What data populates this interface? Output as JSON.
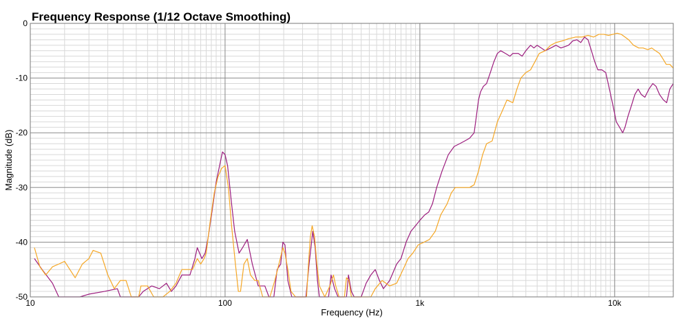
{
  "chart_data": {
    "type": "line",
    "title": "Frequency Response (1/12 Octave Smoothing)",
    "xlabel": "Frequency (Hz)",
    "ylabel": "Magnitude (dB)",
    "xscale": "log",
    "xlim": [
      10,
      20000
    ],
    "ylim": [
      -50,
      0
    ],
    "grid": true,
    "legend": "none",
    "x_ticks": [
      {
        "value": 10,
        "label": "10"
      },
      {
        "value": 100,
        "label": "100"
      },
      {
        "value": 1000,
        "label": "1k"
      },
      {
        "value": 10000,
        "label": "10k"
      }
    ],
    "y_ticks": [
      {
        "value": 0,
        "label": "0"
      },
      {
        "value": -10,
        "label": "-10"
      },
      {
        "value": -20,
        "label": "-20"
      },
      {
        "value": -30,
        "label": "-30"
      },
      {
        "value": -40,
        "label": "-40"
      },
      {
        "value": -50,
        "label": "-50"
      }
    ],
    "series": [
      {
        "color": "#9b1b7d",
        "points": [
          [
            10.5,
            -43
          ],
          [
            11.5,
            -45
          ],
          [
            13,
            -47.5
          ],
          [
            14,
            -50
          ],
          [
            18,
            -50
          ],
          [
            20,
            -49.5
          ],
          [
            24,
            -49
          ],
          [
            28,
            -48.5
          ],
          [
            29,
            -50
          ],
          [
            36,
            -50
          ],
          [
            38,
            -49
          ],
          [
            42,
            -48
          ],
          [
            46,
            -48.5
          ],
          [
            48,
            -48
          ],
          [
            50,
            -47.5
          ],
          [
            53,
            -49
          ],
          [
            56,
            -48
          ],
          [
            60,
            -46
          ],
          [
            63,
            -46
          ],
          [
            66,
            -46
          ],
          [
            70,
            -43
          ],
          [
            72,
            -41
          ],
          [
            76,
            -43
          ],
          [
            79,
            -42
          ],
          [
            82,
            -39
          ],
          [
            86,
            -34
          ],
          [
            90,
            -29
          ],
          [
            95,
            -25
          ],
          [
            97,
            -23.5
          ],
          [
            100,
            -24
          ],
          [
            103,
            -26
          ],
          [
            108,
            -33
          ],
          [
            112,
            -38
          ],
          [
            118,
            -42
          ],
          [
            123,
            -41
          ],
          [
            130,
            -39.5
          ],
          [
            138,
            -44
          ],
          [
            148,
            -48
          ],
          [
            160,
            -48
          ],
          [
            168,
            -50
          ],
          [
            178,
            -50
          ],
          [
            185,
            -45
          ],
          [
            193,
            -44
          ],
          [
            198,
            -40
          ],
          [
            203,
            -40.5
          ],
          [
            210,
            -47
          ],
          [
            220,
            -50
          ],
          [
            260,
            -50
          ],
          [
            270,
            -44
          ],
          [
            278,
            -40
          ],
          [
            282,
            -38
          ],
          [
            290,
            -41
          ],
          [
            298,
            -47
          ],
          [
            305,
            -50
          ],
          [
            340,
            -50
          ],
          [
            350,
            -46
          ],
          [
            365,
            -48.5
          ],
          [
            380,
            -50
          ],
          [
            420,
            -50
          ],
          [
            430,
            -46
          ],
          [
            445,
            -49
          ],
          [
            460,
            -50
          ],
          [
            500,
            -50
          ],
          [
            530,
            -47.5
          ],
          [
            560,
            -46
          ],
          [
            590,
            -45
          ],
          [
            620,
            -47
          ],
          [
            650,
            -48.5
          ],
          [
            700,
            -47
          ],
          [
            760,
            -44
          ],
          [
            800,
            -43
          ],
          [
            850,
            -40
          ],
          [
            900,
            -38
          ],
          [
            950,
            -37
          ],
          [
            1000,
            -36
          ],
          [
            1060,
            -35
          ],
          [
            1110,
            -34.5
          ],
          [
            1160,
            -33
          ],
          [
            1220,
            -30
          ],
          [
            1300,
            -27
          ],
          [
            1400,
            -24
          ],
          [
            1500,
            -22.5
          ],
          [
            1600,
            -22
          ],
          [
            1700,
            -21.5
          ],
          [
            1800,
            -21
          ],
          [
            1900,
            -20
          ],
          [
            1950,
            -17
          ],
          [
            2000,
            -14
          ],
          [
            2050,
            -12.5
          ],
          [
            2120,
            -11.5
          ],
          [
            2200,
            -11
          ],
          [
            2300,
            -9
          ],
          [
            2400,
            -7
          ],
          [
            2500,
            -5.5
          ],
          [
            2600,
            -5
          ],
          [
            2750,
            -5.5
          ],
          [
            2900,
            -6
          ],
          [
            3000,
            -5.5
          ],
          [
            3200,
            -5.5
          ],
          [
            3350,
            -6
          ],
          [
            3500,
            -5
          ],
          [
            3700,
            -4
          ],
          [
            3850,
            -4.5
          ],
          [
            4000,
            -4
          ],
          [
            4200,
            -4.5
          ],
          [
            4400,
            -5
          ],
          [
            4700,
            -4.5
          ],
          [
            5000,
            -4
          ],
          [
            5300,
            -4.5
          ],
          [
            5600,
            -4.2
          ],
          [
            5800,
            -4
          ],
          [
            6100,
            -3.2
          ],
          [
            6400,
            -3
          ],
          [
            6700,
            -3.5
          ],
          [
            7000,
            -2.5
          ],
          [
            7300,
            -3
          ],
          [
            7600,
            -5
          ],
          [
            7900,
            -7
          ],
          [
            8200,
            -8.5
          ],
          [
            8600,
            -8.5
          ],
          [
            9000,
            -9
          ],
          [
            9400,
            -12
          ],
          [
            9800,
            -15
          ],
          [
            10200,
            -18
          ],
          [
            10600,
            -19
          ],
          [
            11000,
            -20
          ],
          [
            11300,
            -19
          ],
          [
            11700,
            -17
          ],
          [
            12200,
            -15
          ],
          [
            12700,
            -13
          ],
          [
            13200,
            -12
          ],
          [
            13700,
            -13
          ],
          [
            14300,
            -13.5
          ],
          [
            15000,
            -12
          ],
          [
            15700,
            -11
          ],
          [
            16300,
            -11.5
          ],
          [
            17000,
            -13
          ],
          [
            17800,
            -14
          ],
          [
            18500,
            -14.5
          ],
          [
            19200,
            -12
          ],
          [
            20000,
            -11
          ]
        ]
      },
      {
        "color": "#f5a623",
        "points": [
          [
            10.5,
            -41
          ],
          [
            11.2,
            -44.5
          ],
          [
            12,
            -46
          ],
          [
            13,
            -44.5
          ],
          [
            14,
            -44
          ],
          [
            15,
            -43.5
          ],
          [
            17,
            -46.5
          ],
          [
            18.5,
            -44
          ],
          [
            20,
            -43
          ],
          [
            21,
            -41.5
          ],
          [
            23,
            -42
          ],
          [
            25,
            -46
          ],
          [
            27,
            -48.5
          ],
          [
            29,
            -47
          ],
          [
            31,
            -47
          ],
          [
            33,
            -50
          ],
          [
            36,
            -50
          ],
          [
            37,
            -48
          ],
          [
            40,
            -48
          ],
          [
            43,
            -50
          ],
          [
            48,
            -50
          ],
          [
            52,
            -49
          ],
          [
            56,
            -47.5
          ],
          [
            60,
            -45
          ],
          [
            64,
            -45
          ],
          [
            68,
            -45
          ],
          [
            72,
            -43
          ],
          [
            75,
            -44
          ],
          [
            78,
            -43
          ],
          [
            80,
            -42
          ],
          [
            84,
            -36
          ],
          [
            88,
            -31
          ],
          [
            92,
            -28
          ],
          [
            96,
            -26.5
          ],
          [
            100,
            -26
          ],
          [
            104,
            -30
          ],
          [
            108,
            -37
          ],
          [
            113,
            -44
          ],
          [
            117,
            -49
          ],
          [
            120,
            -49
          ],
          [
            125,
            -44
          ],
          [
            130,
            -43
          ],
          [
            135,
            -46
          ],
          [
            142,
            -47
          ],
          [
            148,
            -47
          ],
          [
            156,
            -50
          ],
          [
            170,
            -50
          ],
          [
            180,
            -47
          ],
          [
            186,
            -45
          ],
          [
            192,
            -43
          ],
          [
            198,
            -41
          ],
          [
            203,
            -42
          ],
          [
            210,
            -45
          ],
          [
            218,
            -49
          ],
          [
            230,
            -50
          ],
          [
            262,
            -50
          ],
          [
            268,
            -44
          ],
          [
            274,
            -39
          ],
          [
            280,
            -37
          ],
          [
            288,
            -39
          ],
          [
            296,
            -44
          ],
          [
            305,
            -48
          ],
          [
            325,
            -50
          ],
          [
            345,
            -48
          ],
          [
            360,
            -46
          ],
          [
            370,
            -48
          ],
          [
            385,
            -50
          ],
          [
            410,
            -50
          ],
          [
            420,
            -46.5
          ],
          [
            432,
            -47
          ],
          [
            445,
            -50
          ],
          [
            560,
            -50
          ],
          [
            590,
            -48.5
          ],
          [
            640,
            -47
          ],
          [
            700,
            -48
          ],
          [
            760,
            -47.5
          ],
          [
            820,
            -45
          ],
          [
            870,
            -43
          ],
          [
            920,
            -42
          ],
          [
            980,
            -40.5
          ],
          [
            1050,
            -40
          ],
          [
            1120,
            -39.5
          ],
          [
            1200,
            -38
          ],
          [
            1280,
            -35
          ],
          [
            1380,
            -33
          ],
          [
            1450,
            -31
          ],
          [
            1520,
            -30
          ],
          [
            1600,
            -30
          ],
          [
            1700,
            -30
          ],
          [
            1800,
            -30
          ],
          [
            1900,
            -29.5
          ],
          [
            2000,
            -27
          ],
          [
            2100,
            -24
          ],
          [
            2200,
            -22
          ],
          [
            2350,
            -21.5
          ],
          [
            2500,
            -18
          ],
          [
            2650,
            -16
          ],
          [
            2800,
            -14
          ],
          [
            3000,
            -14.5
          ],
          [
            3150,
            -12
          ],
          [
            3300,
            -10
          ],
          [
            3500,
            -9
          ],
          [
            3700,
            -8.5
          ],
          [
            3900,
            -7
          ],
          [
            4100,
            -5.5
          ],
          [
            4400,
            -5
          ],
          [
            4700,
            -4
          ],
          [
            5000,
            -3.5
          ],
          [
            5400,
            -3.2
          ],
          [
            5800,
            -2.8
          ],
          [
            6300,
            -2.5
          ],
          [
            6800,
            -2.5
          ],
          [
            7300,
            -2.2
          ],
          [
            7800,
            -2.5
          ],
          [
            8300,
            -2
          ],
          [
            8800,
            -2
          ],
          [
            9300,
            -2.2
          ],
          [
            9800,
            -2
          ],
          [
            10300,
            -1.8
          ],
          [
            10800,
            -2
          ],
          [
            11300,
            -2.5
          ],
          [
            11800,
            -3
          ],
          [
            12500,
            -4
          ],
          [
            13300,
            -4.5
          ],
          [
            14000,
            -4.5
          ],
          [
            14800,
            -4.8
          ],
          [
            15500,
            -4.5
          ],
          [
            16200,
            -5
          ],
          [
            17000,
            -5.5
          ],
          [
            17700,
            -6.5
          ],
          [
            18400,
            -7.5
          ],
          [
            19200,
            -7.5
          ],
          [
            19800,
            -8
          ],
          [
            20000,
            -8.2
          ]
        ]
      }
    ]
  }
}
